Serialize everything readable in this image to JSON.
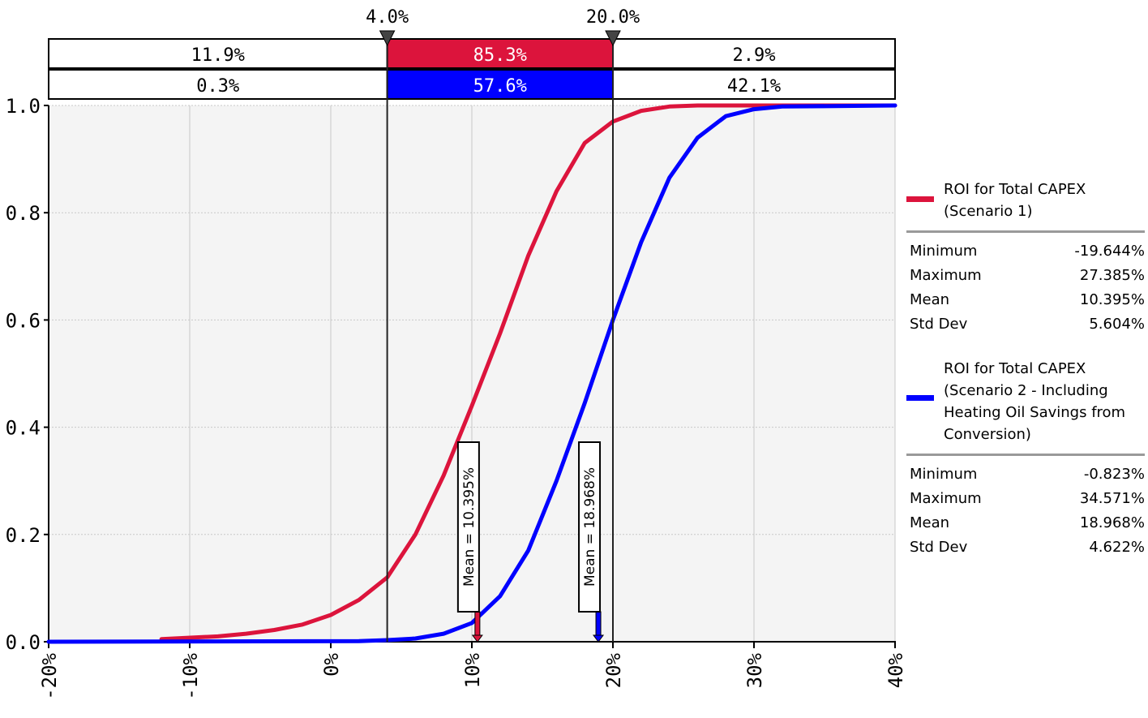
{
  "chart_data": {
    "type": "line",
    "xlim": [
      -0.2,
      0.4
    ],
    "ylim": [
      0,
      1
    ],
    "x_ticks": [
      "-20%",
      "-10%",
      "0%",
      "10%",
      "20%",
      "30%",
      "40%"
    ],
    "x_tick_values": [
      -0.2,
      -0.1,
      0,
      0.1,
      0.2,
      0.3,
      0.4
    ],
    "y_ticks": [
      "0.0",
      "0.2",
      "0.4",
      "0.6",
      "0.8",
      "1.0"
    ],
    "y_tick_values": [
      0,
      0.2,
      0.4,
      0.6,
      0.8,
      1.0
    ],
    "grid": true,
    "legend_position": "right",
    "markers": [
      {
        "label": "4.0%",
        "value": 0.04
      },
      {
        "label": "20.0%",
        "value": 0.2
      }
    ],
    "bands": [
      {
        "cells": [
          "11.9%",
          "85.3%",
          "2.9%"
        ],
        "color": "#dc143c"
      },
      {
        "cells": [
          "0.3%",
          "57.6%",
          "42.1%"
        ],
        "color": "#0000ff"
      }
    ],
    "series": [
      {
        "name": "ROI for Total CAPEX (Scenario 1)",
        "name_lines": [
          "ROI for Total CAPEX",
          "(Scenario 1)"
        ],
        "color": "#dc143c",
        "points": [
          [
            -0.12,
            0.005
          ],
          [
            -0.08,
            0.01
          ],
          [
            -0.06,
            0.015
          ],
          [
            -0.04,
            0.022
          ],
          [
            -0.02,
            0.032
          ],
          [
            0.0,
            0.05
          ],
          [
            0.02,
            0.078
          ],
          [
            0.04,
            0.12
          ],
          [
            0.06,
            0.2
          ],
          [
            0.08,
            0.31
          ],
          [
            0.1,
            0.44
          ],
          [
            0.12,
            0.575
          ],
          [
            0.14,
            0.72
          ],
          [
            0.16,
            0.84
          ],
          [
            0.18,
            0.93
          ],
          [
            0.2,
            0.97
          ],
          [
            0.22,
            0.99
          ],
          [
            0.24,
            0.998
          ],
          [
            0.26,
            1.0
          ],
          [
            0.4,
            1.0
          ]
        ],
        "mean_label": "Mean = 10.395%",
        "mean_value": 0.10395,
        "stats": [
          {
            "label": "Minimum",
            "value": "-19.644%"
          },
          {
            "label": "Maximum",
            "value": "27.385%"
          },
          {
            "label": "Mean",
            "value": "10.395%"
          },
          {
            "label": "Std Dev",
            "value": "5.604%"
          }
        ]
      },
      {
        "name": "ROI for Total CAPEX (Scenario 2 - Including Heating Oil Savings from Conversion)",
        "name_lines": [
          "ROI for Total CAPEX",
          "(Scenario 2 - Including",
          "Heating Oil Savings from",
          "Conversion)"
        ],
        "color": "#0000ff",
        "points": [
          [
            -0.2,
            0.0
          ],
          [
            0.02,
            0.001
          ],
          [
            0.04,
            0.003
          ],
          [
            0.06,
            0.006
          ],
          [
            0.08,
            0.015
          ],
          [
            0.1,
            0.035
          ],
          [
            0.12,
            0.085
          ],
          [
            0.14,
            0.17
          ],
          [
            0.16,
            0.3
          ],
          [
            0.18,
            0.445
          ],
          [
            0.2,
            0.6
          ],
          [
            0.22,
            0.745
          ],
          [
            0.24,
            0.865
          ],
          [
            0.26,
            0.94
          ],
          [
            0.28,
            0.98
          ],
          [
            0.3,
            0.993
          ],
          [
            0.32,
            0.998
          ],
          [
            0.4,
            1.0
          ]
        ],
        "mean_label": "Mean = 18.968%",
        "mean_value": 0.18968,
        "stats": [
          {
            "label": "Minimum",
            "value": "-0.823%"
          },
          {
            "label": "Maximum",
            "value": "34.571%"
          },
          {
            "label": "Mean",
            "value": "18.968%"
          },
          {
            "label": "Std Dev",
            "value": "4.622%"
          }
        ]
      }
    ]
  }
}
